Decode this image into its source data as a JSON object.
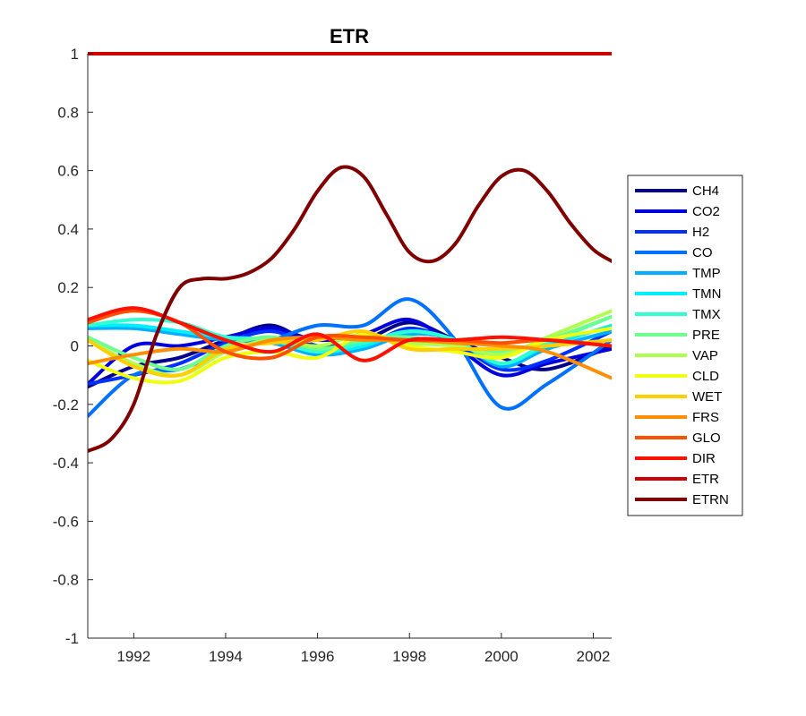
{
  "chart_data": {
    "type": "line",
    "title": "ETR",
    "xlabel": "",
    "ylabel": "",
    "xlim": [
      1991,
      2002.4
    ],
    "ylim": [
      -1,
      1
    ],
    "xticks": [
      1992,
      1994,
      1996,
      1998,
      2000,
      2002
    ],
    "xtick_labels": [
      "1992",
      "1994",
      "1996",
      "1998",
      "2000",
      "2002"
    ],
    "yticks": [
      -1,
      -0.8,
      -0.6,
      -0.4,
      -0.2,
      0,
      0.2,
      0.4,
      0.6,
      0.8,
      1
    ],
    "ytick_labels": [
      "-1",
      "-0.8",
      "-0.6",
      "-0.4",
      "-0.2",
      "0",
      "0.2",
      "0.4",
      "0.6",
      "0.8",
      "1"
    ],
    "grid": false,
    "legend_position": "right",
    "series": [
      {
        "name": "CH4",
        "color": "#00008F",
        "x": [
          1991,
          1992,
          1993,
          1994,
          1995,
          1996,
          1997,
          1998,
          1999,
          2000,
          2001,
          2002.4
        ],
        "values": [
          -0.14,
          -0.07,
          -0.04,
          0.02,
          0.07,
          0.0,
          0.02,
          0.08,
          0.02,
          -0.04,
          -0.08,
          0.0
        ]
      },
      {
        "name": "CO2",
        "color": "#0000DF",
        "x": [
          1991,
          1992,
          1993,
          1994,
          1995,
          1996,
          1997,
          1998,
          1999,
          2000,
          2001,
          2002.4
        ],
        "values": [
          -0.13,
          0.0,
          0.0,
          0.03,
          0.06,
          0.02,
          0.04,
          0.09,
          0.0,
          -0.1,
          -0.06,
          -0.01
        ]
      },
      {
        "name": "H2",
        "color": "#0030FF",
        "x": [
          1991,
          1992,
          1993,
          1994,
          1995,
          1996,
          1997,
          1998,
          1999,
          2000,
          2001,
          2002.4
        ],
        "values": [
          -0.13,
          -0.1,
          -0.06,
          0.01,
          0.05,
          0.0,
          0.0,
          0.06,
          0.01,
          -0.08,
          -0.05,
          0.05
        ]
      },
      {
        "name": "CO",
        "color": "#0070FF",
        "x": [
          1991,
          1992,
          1993,
          1994,
          1995,
          1996,
          1997,
          1998,
          1999,
          2000,
          2001,
          2002.4
        ],
        "values": [
          -0.24,
          -0.1,
          -0.08,
          -0.02,
          0.02,
          0.07,
          0.07,
          0.16,
          0.02,
          -0.21,
          -0.13,
          0.02
        ]
      },
      {
        "name": "TMP",
        "color": "#00AFFF",
        "x": [
          1991,
          1992,
          1993,
          1994,
          1995,
          1996,
          1997,
          1998,
          1999,
          2000,
          2001,
          2002.4
        ],
        "values": [
          0.06,
          0.06,
          0.04,
          0.02,
          0.01,
          -0.03,
          -0.01,
          0.04,
          0.02,
          -0.07,
          -0.01,
          0.05
        ]
      },
      {
        "name": "TMN",
        "color": "#00EFFF",
        "x": [
          1991,
          1992,
          1993,
          1994,
          1995,
          1996,
          1997,
          1998,
          1999,
          2000,
          2001,
          2002.4
        ],
        "values": [
          0.07,
          0.07,
          0.05,
          0.03,
          0.02,
          -0.02,
          0.0,
          0.05,
          0.02,
          -0.06,
          0.0,
          0.07
        ]
      },
      {
        "name": "TMX",
        "color": "#30FFCF",
        "x": [
          1991,
          1992,
          1993,
          1994,
          1995,
          1996,
          1997,
          1998,
          1999,
          2000,
          2001,
          2002.4
        ],
        "values": [
          0.07,
          0.09,
          0.08,
          0.03,
          0.02,
          -0.02,
          0.01,
          0.05,
          0.02,
          -0.06,
          0.01,
          0.1
        ]
      },
      {
        "name": "PRE",
        "color": "#6FFF8F",
        "x": [
          1991,
          1992,
          1993,
          1994,
          1995,
          1996,
          1997,
          1998,
          1999,
          2000,
          2001,
          2002.4
        ],
        "values": [
          0.03,
          -0.04,
          -0.08,
          0.0,
          0.03,
          -0.01,
          0.02,
          0.03,
          0.0,
          -0.02,
          0.02,
          0.1
        ]
      },
      {
        "name": "VAP",
        "color": "#AFFF4F",
        "x": [
          1991,
          1992,
          1993,
          1994,
          1995,
          1996,
          1997,
          1998,
          1999,
          2000,
          2001,
          2002.4
        ],
        "values": [
          0.02,
          -0.06,
          -0.1,
          -0.02,
          0.02,
          0.0,
          0.04,
          0.01,
          0.0,
          -0.03,
          0.03,
          0.12
        ]
      },
      {
        "name": "CLD",
        "color": "#EFFF0F",
        "x": [
          1991,
          1992,
          1993,
          1994,
          1995,
          1996,
          1997,
          1998,
          1999,
          2000,
          2001,
          2002.4
        ],
        "values": [
          -0.05,
          -0.11,
          -0.12,
          -0.04,
          -0.02,
          -0.04,
          0.04,
          0.0,
          -0.02,
          -0.04,
          0.02,
          0.06
        ]
      },
      {
        "name": "WET",
        "color": "#FFCF00",
        "x": [
          1991,
          1992,
          1993,
          1994,
          1995,
          1996,
          1997,
          1998,
          1999,
          2000,
          2001,
          2002.4
        ],
        "values": [
          0.02,
          -0.07,
          -0.1,
          -0.01,
          0.01,
          0.02,
          0.05,
          -0.01,
          -0.01,
          -0.01,
          0.0,
          0.02
        ]
      },
      {
        "name": "FRS",
        "color": "#FF8F00",
        "x": [
          1991,
          1992,
          1993,
          1994,
          1995,
          1996,
          1997,
          1998,
          1999,
          2000,
          2001,
          2002.4
        ],
        "values": [
          -0.06,
          -0.03,
          -0.01,
          -0.02,
          0.02,
          0.03,
          0.02,
          0.02,
          0.01,
          0.0,
          -0.02,
          -0.11
        ]
      },
      {
        "name": "GLO",
        "color": "#FF5000",
        "x": [
          1991,
          1992,
          1993,
          1994,
          1995,
          1996,
          1997,
          1998,
          1999,
          2000,
          2001,
          2002.4
        ],
        "values": [
          0.08,
          0.12,
          0.08,
          -0.02,
          -0.04,
          0.03,
          0.03,
          0.02,
          0.02,
          0.01,
          0.02,
          0.0
        ]
      },
      {
        "name": "DIR",
        "color": "#FF1000",
        "x": [
          1991,
          1992,
          1993,
          1994,
          1995,
          1996,
          1997,
          1998,
          1999,
          2000,
          2001,
          2002.4
        ],
        "values": [
          0.09,
          0.13,
          0.08,
          0.02,
          -0.02,
          0.04,
          -0.05,
          0.02,
          0.02,
          0.03,
          0.02,
          0.0
        ]
      },
      {
        "name": "ETR",
        "color": "#CF0000",
        "x": [
          1991,
          1992,
          1993,
          1994,
          1995,
          1996,
          1997,
          1998,
          1999,
          2000,
          2001,
          2002.4
        ],
        "values": [
          1,
          1,
          1,
          1,
          1,
          1,
          1,
          1,
          1,
          1,
          1,
          1
        ]
      },
      {
        "name": "ETRN",
        "color": "#800000",
        "x": [
          1991,
          1991.5,
          1992,
          1992.5,
          1993,
          1993.5,
          1994,
          1994.5,
          1995,
          1995.5,
          1996,
          1996.5,
          1997,
          1997.5,
          1998,
          1998.5,
          1999,
          1999.5,
          2000,
          2000.5,
          2001,
          2001.5,
          2002,
          2002.4
        ],
        "values": [
          -0.36,
          -0.32,
          -0.2,
          0.04,
          0.2,
          0.23,
          0.23,
          0.25,
          0.3,
          0.4,
          0.53,
          0.61,
          0.58,
          0.45,
          0.32,
          0.29,
          0.35,
          0.48,
          0.58,
          0.6,
          0.53,
          0.42,
          0.33,
          0.29
        ]
      }
    ]
  }
}
